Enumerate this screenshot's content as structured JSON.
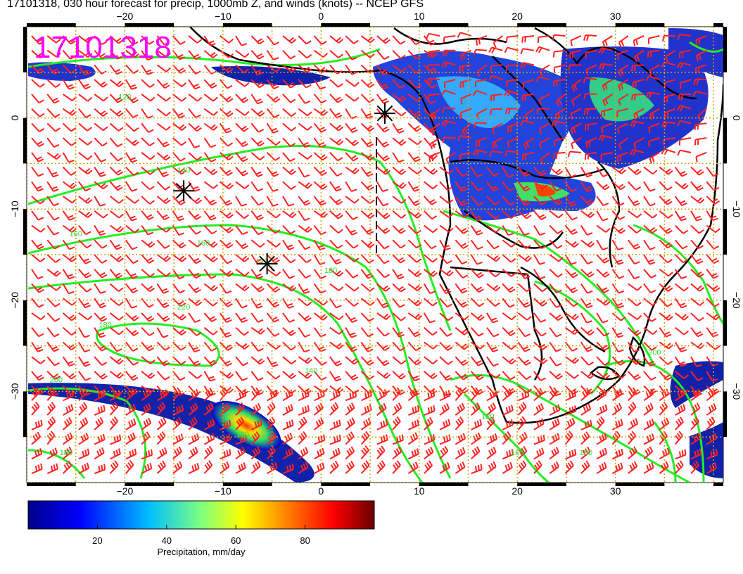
{
  "title": "17101318, 030 hour forecast for precip, 1000mb Z, and winds (knots) -- NCEP GFS",
  "stamp": "17101318",
  "colors": {
    "wind_barb": "#ff2020",
    "contour": "#22ee22",
    "coastline": "#000000",
    "grid": "#d4a017",
    "stamp": "#ff00ff"
  },
  "map": {
    "lon_range": [
      -30,
      41
    ],
    "lat_range": [
      -40,
      10
    ],
    "x_ticks": [
      -20,
      -10,
      0,
      10,
      20,
      30
    ],
    "y_ticks": [
      0,
      -10,
      -20,
      -30
    ],
    "x_tick_labels": [
      "−20",
      "−10",
      "0",
      "10",
      "20",
      "30"
    ],
    "y_tick_labels": [
      "0",
      "−10",
      "−20",
      "−30"
    ],
    "contour_labels": [
      "120",
      "140",
      "160",
      "160",
      "180",
      "120",
      "180",
      "200",
      "220",
      "180",
      "160",
      "140",
      "120",
      "160",
      "180",
      "200"
    ],
    "markers": [
      {
        "lon": -14,
        "lat": -8
      },
      {
        "lon": -5.5,
        "lat": -16
      },
      {
        "lon": 6.5,
        "lat": 0.5
      }
    ]
  },
  "colorbar": {
    "label": "Precipitation, mm/day",
    "range": [
      0,
      100
    ],
    "ticks": [
      20,
      40,
      60,
      80
    ],
    "tick_labels": [
      "20",
      "40",
      "60",
      "80"
    ],
    "colors": [
      "#00008b",
      "#0000ff",
      "#00bfff",
      "#7fff7f",
      "#ffff00",
      "#ff7f00",
      "#ff0000",
      "#7f0000"
    ]
  }
}
